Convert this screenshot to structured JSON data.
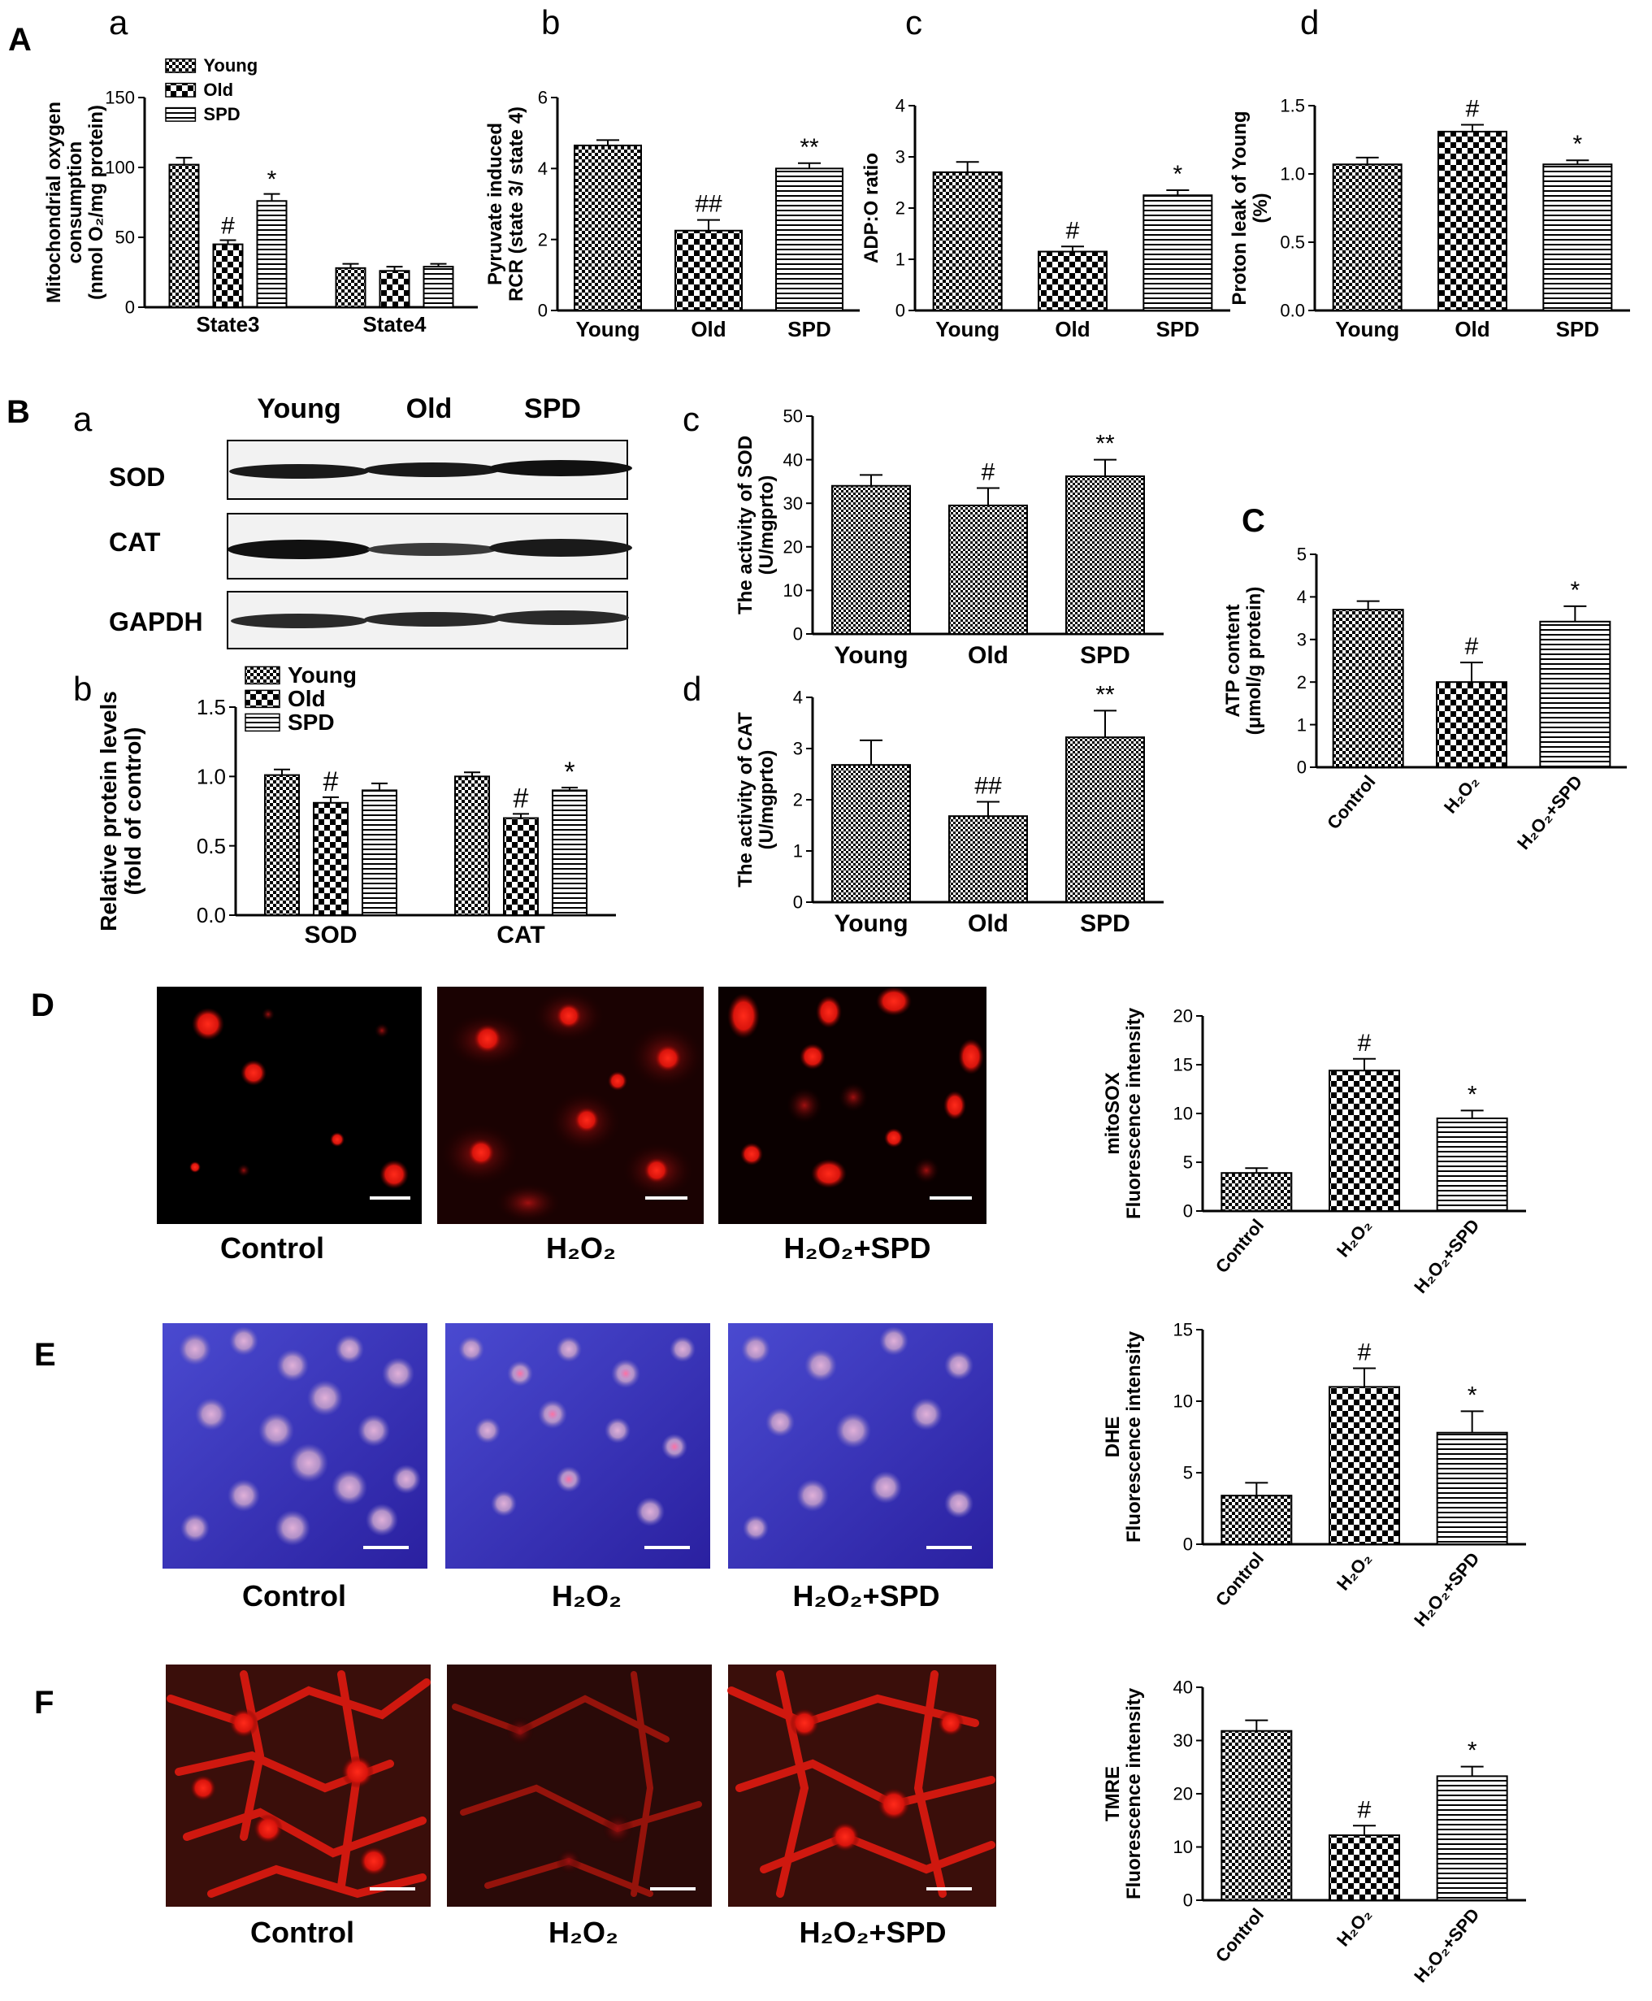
{
  "panels": {
    "A": "A",
    "B": "B",
    "C": "C",
    "D": "D",
    "E": "E",
    "F": "F",
    "a": "a",
    "b": "b",
    "c": "c",
    "d": "d"
  },
  "western_blot": {
    "lanes": [
      "Young",
      "Old",
      "SPD"
    ],
    "rows": [
      "SOD",
      "CAT",
      "GAPDH"
    ]
  },
  "micrographs": {
    "D": [
      "Control",
      "H₂O₂",
      "H₂O₂+SPD"
    ],
    "E": [
      "Control",
      "H₂O₂",
      "H₂O₂+SPD"
    ],
    "F": [
      "Control",
      "H₂O₂",
      "H₂O₂+SPD"
    ]
  },
  "colors": {
    "frame": "#000000",
    "bar_fill": "#ffffff",
    "mito_red": "#ff1a1a",
    "dhe_blue": "#3a34b8",
    "tmre_bg": "#3a1010"
  },
  "chart_data": [
    {
      "id": "Aa",
      "type": "bar",
      "categories": [
        "State3",
        "State4"
      ],
      "series": [
        {
          "name": "Young",
          "values": [
            102,
            28
          ],
          "errors": [
            5,
            3
          ],
          "marks": [
            "",
            ""
          ],
          "pattern": "check"
        },
        {
          "name": "Old",
          "values": [
            45,
            26
          ],
          "errors": [
            3,
            3
          ],
          "marks": [
            "#",
            ""
          ],
          "pattern": "diamond"
        },
        {
          "name": "SPD",
          "values": [
            76,
            29
          ],
          "errors": [
            5,
            2
          ],
          "marks": [
            "*",
            ""
          ],
          "pattern": "hstripe"
        }
      ],
      "ylabel": "Mitochondrial oxygen\nconsumption\n(nmol O₂/mg protein)",
      "ylim": [
        0,
        150
      ],
      "yticks": [
        0,
        50,
        100,
        150
      ],
      "legend": "top-left"
    },
    {
      "id": "Ab",
      "type": "bar",
      "categories": [
        "Young",
        "Old",
        "SPD"
      ],
      "values": [
        4.65,
        2.25,
        4.0
      ],
      "errors": [
        0.15,
        0.3,
        0.15
      ],
      "marks": [
        "",
        "##",
        "**"
      ],
      "patterns": [
        "check",
        "diamond",
        "hstripe"
      ],
      "ylabel": "Pyruvate induced\nRCR (state 3/ state 4)",
      "ylim": [
        0,
        6
      ],
      "yticks": [
        0,
        2,
        4,
        6
      ]
    },
    {
      "id": "Ac",
      "type": "bar",
      "categories": [
        "Young",
        "Old",
        "SPD"
      ],
      "values": [
        2.7,
        1.15,
        2.25
      ],
      "errors": [
        0.2,
        0.1,
        0.1
      ],
      "marks": [
        "",
        "#",
        "*"
      ],
      "patterns": [
        "check",
        "diamond",
        "hstripe"
      ],
      "ylabel": "ADP:O ratio",
      "ylim": [
        0,
        4
      ],
      "yticks": [
        0,
        1,
        2,
        3,
        4
      ]
    },
    {
      "id": "Ad",
      "type": "bar",
      "categories": [
        "Young",
        "Old",
        "SPD"
      ],
      "values": [
        1.07,
        1.31,
        1.07
      ],
      "errors": [
        0.05,
        0.05,
        0.03
      ],
      "marks": [
        "",
        "#",
        "*"
      ],
      "patterns": [
        "check",
        "diamond",
        "hstripe"
      ],
      "ylabel": "Proton leak of Young\n(%)",
      "ylim": [
        0,
        1.5
      ],
      "yticks": [
        0.0,
        0.5,
        1.0,
        1.5
      ],
      "tickdec": 1
    },
    {
      "id": "Bb",
      "type": "bar",
      "categories": [
        "SOD",
        "CAT"
      ],
      "series": [
        {
          "name": "Young",
          "values": [
            1.01,
            1.0
          ],
          "errors": [
            0.04,
            0.03
          ],
          "marks": [
            "",
            ""
          ],
          "pattern": "check"
        },
        {
          "name": "Old",
          "values": [
            0.81,
            0.7
          ],
          "errors": [
            0.04,
            0.03
          ],
          "marks": [
            "#",
            "#"
          ],
          "pattern": "diamond"
        },
        {
          "name": "SPD",
          "values": [
            0.9,
            0.9
          ],
          "errors": [
            0.05,
            0.02
          ],
          "marks": [
            "",
            "*"
          ],
          "pattern": "hstripe"
        }
      ],
      "ylabel": "Relative protein levels\n(fold of control)",
      "ylim": [
        0,
        1.5
      ],
      "yticks": [
        0.0,
        0.5,
        1.0,
        1.5
      ],
      "tickdec": 1,
      "legend": "top-left"
    },
    {
      "id": "Bc",
      "type": "bar",
      "categories": [
        "Young",
        "Old",
        "SPD"
      ],
      "values": [
        34,
        29.5,
        36.2
      ],
      "errors": [
        2.5,
        4,
        3.8
      ],
      "marks": [
        "",
        "#",
        "**"
      ],
      "patterns": [
        "fine",
        "fine",
        "fine"
      ],
      "ylabel": "The activity of SOD\n(U/mgprto)",
      "ylim": [
        0,
        50
      ],
      "yticks": [
        0,
        10,
        20,
        30,
        40,
        50
      ]
    },
    {
      "id": "Bd",
      "type": "bar",
      "categories": [
        "Young",
        "Old",
        "SPD"
      ],
      "values": [
        2.68,
        1.68,
        3.22
      ],
      "errors": [
        0.48,
        0.28,
        0.52
      ],
      "marks": [
        "",
        "##",
        "**"
      ],
      "patterns": [
        "fine",
        "fine",
        "fine"
      ],
      "ylabel": "The activity of CAT\n(U/mgprto)",
      "ylim": [
        0,
        4
      ],
      "yticks": [
        0,
        1,
        2,
        3,
        4
      ]
    },
    {
      "id": "C",
      "type": "bar",
      "categories": [
        "Control",
        "H₂O₂",
        "H₂O₂+SPD"
      ],
      "values": [
        3.7,
        2.0,
        3.42
      ],
      "errors": [
        0.2,
        0.46,
        0.36
      ],
      "marks": [
        "",
        "#",
        "*"
      ],
      "patterns": [
        "check",
        "diamond",
        "hstripe"
      ],
      "ylabel": "ATP content\n(μmol/g protein)",
      "ylim": [
        0,
        5
      ],
      "yticks": [
        0,
        1,
        2,
        3,
        4,
        5
      ]
    },
    {
      "id": "D",
      "type": "bar",
      "categories": [
        "Control",
        "H₂O₂",
        "H₂O₂+SPD"
      ],
      "values": [
        3.9,
        14.4,
        9.5
      ],
      "errors": [
        0.5,
        1.2,
        0.8
      ],
      "marks": [
        "",
        "#",
        "*"
      ],
      "patterns": [
        "check",
        "diamond",
        "hstripe"
      ],
      "ylabel": "mitoSOX\nFluorescence intensity",
      "ylim": [
        0,
        20
      ],
      "yticks": [
        0,
        5,
        10,
        15,
        20
      ]
    },
    {
      "id": "E",
      "type": "bar",
      "categories": [
        "Control",
        "H₂O₂",
        "H₂O₂+SPD"
      ],
      "values": [
        3.4,
        11.0,
        7.8
      ],
      "errors": [
        0.9,
        1.3,
        1.5
      ],
      "marks": [
        "",
        "#",
        "*"
      ],
      "patterns": [
        "check",
        "diamond",
        "hstripe"
      ],
      "ylabel": "DHE\nFluorescence intensity",
      "ylim": [
        0,
        15
      ],
      "yticks": [
        0,
        5,
        10,
        15
      ]
    },
    {
      "id": "F",
      "type": "bar",
      "categories": [
        "Control",
        "H₂O₂",
        "H₂O₂+SPD"
      ],
      "values": [
        31.8,
        12.2,
        23.3
      ],
      "errors": [
        2.0,
        1.8,
        1.8
      ],
      "marks": [
        "",
        "#",
        "*"
      ],
      "patterns": [
        "check",
        "diamond",
        "hstripe"
      ],
      "ylabel": "TMRE\nFluorescence intensity",
      "ylim": [
        0,
        40
      ],
      "yticks": [
        0,
        10,
        20,
        30,
        40
      ]
    }
  ]
}
